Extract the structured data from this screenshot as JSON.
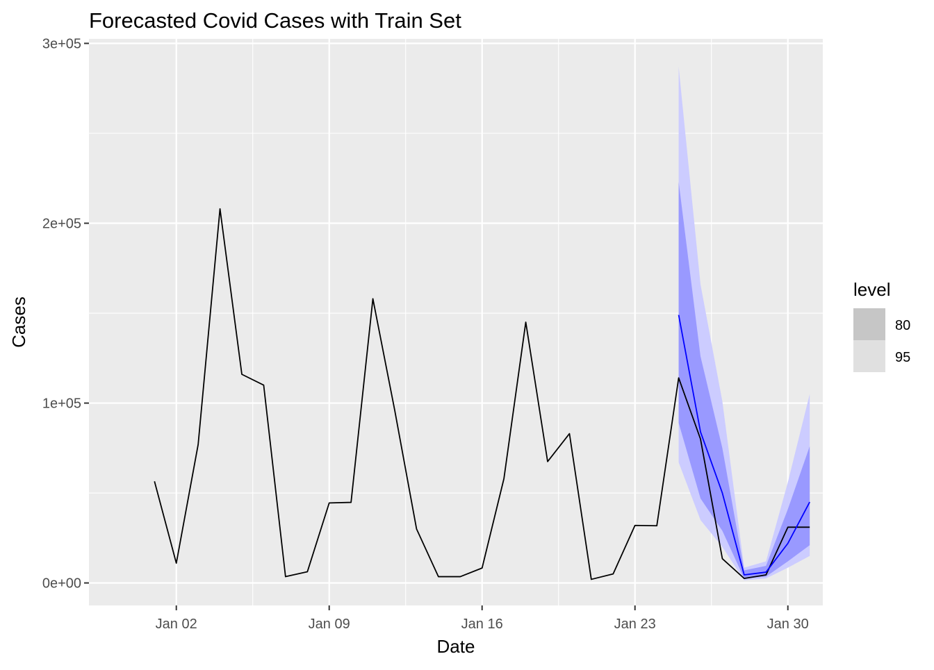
{
  "chart_data": {
    "type": "line",
    "title": "Forecasted Covid Cases with Train Set",
    "xlabel": "Date",
    "ylabel": "Cases",
    "x_range": [
      "2021-12-30",
      "2022-01-31"
    ],
    "ylim": [
      -12500,
      302500
    ],
    "x_ticks": [
      {
        "date": "2022-01-02",
        "label": "Jan 02"
      },
      {
        "date": "2022-01-09",
        "label": "Jan 09"
      },
      {
        "date": "2022-01-16",
        "label": "Jan 16"
      },
      {
        "date": "2022-01-23",
        "label": "Jan 23"
      },
      {
        "date": "2022-01-30",
        "label": "Jan 30"
      }
    ],
    "y_ticks": [
      {
        "value": 0,
        "label": "0e+00"
      },
      {
        "value": 100000,
        "label": "1e+05"
      },
      {
        "value": 200000,
        "label": "2e+05"
      },
      {
        "value": 300000,
        "label": "3e+05"
      }
    ],
    "grid": true,
    "legend": {
      "title": "level",
      "position": "right",
      "entries": [
        {
          "label": "80",
          "color": "#c6c6c6"
        },
        {
          "label": "95",
          "color": "#e0e0e0"
        }
      ]
    },
    "colors": {
      "panel": "#ebebeb",
      "grid": "#ffffff",
      "actual": "#000000",
      "forecast": "#0000ff",
      "band80": "#9999ff",
      "band95": "#ccccff"
    },
    "series": [
      {
        "role": "actual",
        "x": [
          "2022-01-01",
          "2022-01-02",
          "2022-01-03",
          "2022-01-04",
          "2022-01-05",
          "2022-01-06",
          "2022-01-07",
          "2022-01-08",
          "2022-01-09",
          "2022-01-10",
          "2022-01-11",
          "2022-01-12",
          "2022-01-13",
          "2022-01-14",
          "2022-01-15",
          "2022-01-16",
          "2022-01-17",
          "2022-01-18",
          "2022-01-19",
          "2022-01-20",
          "2022-01-21",
          "2022-01-22",
          "2022-01-23",
          "2022-01-24",
          "2022-01-25",
          "2022-01-26",
          "2022-01-27",
          "2022-01-28",
          "2022-01-29",
          "2022-01-30",
          "2022-01-31"
        ],
        "values": [
          56500,
          11000,
          77000,
          208000,
          116000,
          110000,
          3500,
          6200,
          44500,
          44800,
          158000,
          96000,
          30000,
          3500,
          3500,
          8300,
          58000,
          145000,
          67500,
          83000,
          2000,
          5000,
          32000,
          31800,
          114000,
          80000,
          13500,
          2500,
          4500,
          31000,
          31000
        ]
      },
      {
        "role": "forecast",
        "x": [
          "2022-01-25",
          "2022-01-26",
          "2022-01-27",
          "2022-01-28",
          "2022-01-29",
          "2022-01-30",
          "2022-01-31"
        ],
        "values": [
          149000,
          84000,
          50000,
          4500,
          6000,
          22000,
          45000
        ],
        "lo80": [
          89000,
          47000,
          29000,
          2500,
          3500,
          12000,
          21000
        ],
        "hi80": [
          223000,
          126000,
          75000,
          7000,
          9500,
          41000,
          76000
        ],
        "lo95": [
          67000,
          35000,
          20000,
          1500,
          2500,
          8500,
          15000
        ],
        "hi95": [
          287000,
          166000,
          101000,
          8500,
          12000,
          56000,
          105000
        ]
      }
    ]
  }
}
